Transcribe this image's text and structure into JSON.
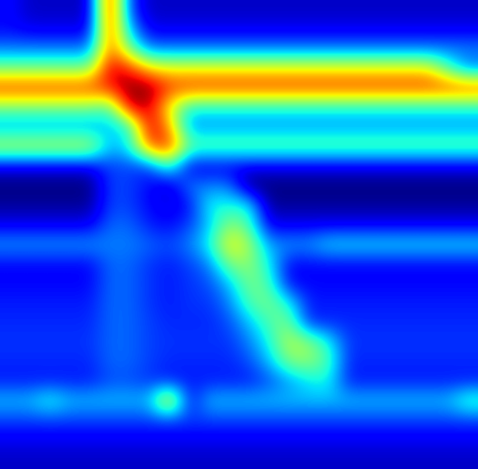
{
  "chart_data": {
    "type": "heatmap",
    "tick_labels": false,
    "cells": [
      [
        30,
        25,
        25,
        25,
        25,
        95,
        35,
        25,
        25,
        25,
        25,
        25,
        25,
        25,
        25,
        25,
        25,
        25,
        25,
        25,
        25,
        25,
        25,
        25
      ],
      [
        30,
        28,
        28,
        28,
        28,
        90,
        45,
        28,
        28,
        28,
        28,
        28,
        28,
        28,
        28,
        28,
        28,
        28,
        28,
        28,
        28,
        28,
        28,
        28
      ],
      [
        40,
        40,
        40,
        40,
        40,
        85,
        60,
        40,
        40,
        40,
        40,
        40,
        40,
        40,
        40,
        40,
        40,
        40,
        40,
        40,
        40,
        40,
        40,
        40
      ],
      [
        60,
        60,
        60,
        60,
        60,
        95,
        90,
        75,
        72,
        72,
        72,
        72,
        72,
        72,
        72,
        72,
        72,
        72,
        72,
        72,
        72,
        72,
        55,
        40
      ],
      [
        88,
        88,
        88,
        88,
        88,
        90,
        100,
        100,
        88,
        88,
        88,
        88,
        88,
        88,
        88,
        88,
        88,
        88,
        88,
        88,
        88,
        88,
        88,
        88
      ],
      [
        60,
        60,
        60,
        60,
        60,
        55,
        95,
        95,
        70,
        50,
        50,
        50,
        50,
        50,
        50,
        50,
        50,
        50,
        50,
        50,
        50,
        50,
        50,
        50
      ],
      [
        42,
        42,
        42,
        42,
        42,
        45,
        50,
        95,
        80,
        42,
        42,
        42,
        42,
        42,
        42,
        42,
        42,
        42,
        42,
        42,
        42,
        42,
        42,
        42
      ],
      [
        68,
        68,
        68,
        68,
        68,
        45,
        50,
        85,
        90,
        58,
        58,
        58,
        58,
        58,
        58,
        58,
        58,
        58,
        58,
        58,
        58,
        58,
        58,
        58
      ],
      [
        28,
        28,
        28,
        28,
        28,
        35,
        35,
        35,
        55,
        28,
        28,
        28,
        28,
        28,
        28,
        28,
        28,
        28,
        28,
        28,
        28,
        28,
        28,
        28
      ],
      [
        20,
        20,
        20,
        20,
        20,
        35,
        35,
        30,
        25,
        40,
        40,
        40,
        20,
        20,
        20,
        20,
        20,
        20,
        20,
        20,
        20,
        20,
        20,
        20
      ],
      [
        22,
        22,
        22,
        22,
        22,
        35,
        35,
        30,
        28,
        30,
        50,
        50,
        50,
        22,
        22,
        22,
        22,
        22,
        22,
        22,
        22,
        22,
        22,
        22
      ],
      [
        28,
        28,
        28,
        28,
        28,
        38,
        38,
        32,
        30,
        35,
        45,
        62,
        55,
        28,
        28,
        28,
        28,
        28,
        28,
        28,
        28,
        28,
        28,
        28
      ],
      [
        42,
        42,
        42,
        42,
        42,
        40,
        40,
        38,
        36,
        40,
        50,
        72,
        65,
        42,
        42,
        42,
        48,
        48,
        48,
        48,
        48,
        48,
        48,
        48
      ],
      [
        30,
        30,
        30,
        30,
        30,
        38,
        38,
        34,
        32,
        35,
        40,
        60,
        62,
        50,
        30,
        30,
        30,
        30,
        30,
        30,
        30,
        30,
        30,
        30
      ],
      [
        30,
        30,
        30,
        30,
        30,
        38,
        38,
        34,
        32,
        34,
        36,
        45,
        60,
        55,
        30,
        30,
        30,
        30,
        30,
        30,
        30,
        30,
        30,
        30
      ],
      [
        32,
        32,
        32,
        32,
        32,
        38,
        38,
        34,
        32,
        34,
        34,
        40,
        55,
        60,
        50,
        32,
        32,
        32,
        32,
        32,
        32,
        32,
        32,
        32
      ],
      [
        33,
        33,
        33,
        33,
        33,
        38,
        38,
        35,
        33,
        33,
        33,
        36,
        45,
        55,
        60,
        33,
        33,
        33,
        33,
        33,
        33,
        33,
        33,
        33
      ],
      [
        34,
        34,
        34,
        34,
        34,
        38,
        38,
        35,
        34,
        34,
        34,
        34,
        40,
        50,
        66,
        62,
        50,
        34,
        34,
        34,
        34,
        34,
        34,
        34
      ],
      [
        33,
        33,
        33,
        33,
        33,
        38,
        38,
        35,
        33,
        33,
        33,
        33,
        36,
        45,
        60,
        62,
        55,
        33,
        33,
        33,
        33,
        33,
        33,
        33
      ],
      [
        32,
        32,
        32,
        32,
        32,
        36,
        36,
        34,
        32,
        32,
        32,
        32,
        32,
        36,
        42,
        48,
        50,
        32,
        32,
        32,
        32,
        32,
        32,
        32
      ],
      [
        45,
        45,
        52,
        45,
        45,
        45,
        45,
        45,
        78,
        30,
        45,
        45,
        45,
        45,
        45,
        45,
        45,
        45,
        45,
        45,
        45,
        45,
        45,
        55
      ],
      [
        35,
        35,
        35,
        35,
        35,
        35,
        35,
        35,
        35,
        35,
        35,
        35,
        35,
        35,
        35,
        35,
        35,
        35,
        35,
        35,
        35,
        35,
        35,
        35
      ],
      [
        28,
        28,
        28,
        28,
        28,
        28,
        28,
        28,
        28,
        28,
        28,
        28,
        28,
        28,
        28,
        28,
        28,
        28,
        28,
        28,
        28,
        28,
        28,
        28
      ],
      [
        25,
        25,
        25,
        25,
        25,
        25,
        25,
        25,
        25,
        25,
        25,
        25,
        25,
        25,
        25,
        25,
        25,
        25,
        25,
        25,
        25,
        25,
        25,
        25
      ]
    ]
  }
}
